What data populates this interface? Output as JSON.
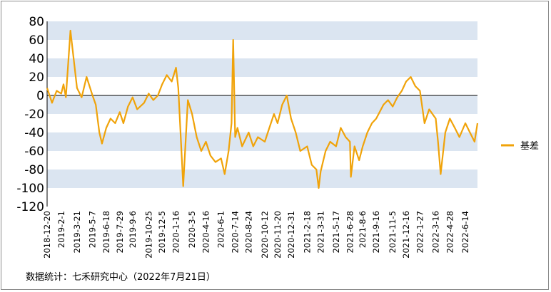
{
  "source_note": "数据统计：七禾研究中心（2022年7月21日）",
  "colors": {
    "line": "#f0a30a",
    "band": "#dbe5f1",
    "zero_line": "#000000"
  },
  "chart_data": {
    "type": "line",
    "title": "",
    "xlabel": "",
    "ylabel": "",
    "ylim": [
      -120,
      80
    ],
    "yticks": [
      80,
      60,
      40,
      20,
      0,
      -20,
      -40,
      -60,
      -80,
      -100,
      -120
    ],
    "x_tick_labels": [
      "2018-12-20",
      "2019-2-1",
      "2019-3-21",
      "2019-5-7",
      "2019-6-18",
      "2019-7-29",
      "2019-9-6",
      "2019-10-25",
      "2019-12-5",
      "2020-1-16",
      "2020-3-5",
      "2020-4-16",
      "2020-6-1",
      "2020-7-14",
      "2020-8-24",
      "2020-10-12",
      "2020-11-20",
      "2020-12-31",
      "2021-2-18",
      "2021-3-31",
      "2021-5-17",
      "2021-6-28",
      "2021-8-6",
      "2021-9-16",
      "2021-11-5",
      "2021-12-16",
      "2022-1-27",
      "2022-3-16",
      "2022-4-28",
      "2022-6-14"
    ],
    "legend_position": "right",
    "grid": "alternating horizontal bands",
    "series": [
      {
        "name": "基差",
        "x": [
          "2018-12-20",
          "2019-1-4",
          "2019-1-18",
          "2019-2-1",
          "2019-2-8",
          "2019-2-15",
          "2019-3-1",
          "2019-3-21",
          "2019-4-4",
          "2019-4-19",
          "2019-5-7",
          "2019-5-17",
          "2019-5-28",
          "2019-6-5",
          "2019-6-18",
          "2019-7-1",
          "2019-7-15",
          "2019-7-29",
          "2019-8-9",
          "2019-8-23",
          "2019-9-6",
          "2019-9-20",
          "2019-10-11",
          "2019-10-25",
          "2019-11-8",
          "2019-11-22",
          "2019-12-5",
          "2019-12-19",
          "2020-1-3",
          "2020-1-16",
          "2020-1-23",
          "2020-2-7",
          "2020-2-21",
          "2020-3-5",
          "2020-3-19",
          "2020-4-2",
          "2020-4-16",
          "2020-4-30",
          "2020-5-15",
          "2020-6-1",
          "2020-6-12",
          "2020-6-24",
          "2020-7-3",
          "2020-7-8",
          "2020-7-14",
          "2020-7-21",
          "2020-8-4",
          "2020-8-24",
          "2020-9-7",
          "2020-9-21",
          "2020-10-12",
          "2020-10-26",
          "2020-11-9",
          "2020-11-20",
          "2020-12-4",
          "2020-12-18",
          "2020-12-31",
          "2021-1-14",
          "2021-1-28",
          "2021-2-18",
          "2021-3-4",
          "2021-3-18",
          "2021-3-25",
          "2021-3-31",
          "2021-4-15",
          "2021-4-29",
          "2021-5-17",
          "2021-5-31",
          "2021-6-15",
          "2021-6-28",
          "2021-7-1",
          "2021-7-12",
          "2021-7-26",
          "2021-8-6",
          "2021-8-20",
          "2021-9-3",
          "2021-9-16",
          "2021-10-8",
          "2021-10-22",
          "2021-11-5",
          "2021-11-19",
          "2021-12-3",
          "2021-12-16",
          "2021-12-30",
          "2022-1-13",
          "2022-1-27",
          "2022-2-10",
          "2022-2-24",
          "2022-3-16",
          "2022-3-23",
          "2022-3-31",
          "2022-4-14",
          "2022-4-28",
          "2022-5-13",
          "2022-5-27",
          "2022-6-14",
          "2022-6-28",
          "2022-7-12",
          "2022-7-21"
        ],
        "values": [
          8,
          -8,
          5,
          2,
          12,
          -2,
          70,
          8,
          -2,
          20,
          0,
          -10,
          -40,
          -52,
          -35,
          -25,
          -30,
          -18,
          -30,
          -12,
          -2,
          -15,
          -8,
          2,
          -5,
          0,
          12,
          22,
          15,
          30,
          8,
          -98,
          -5,
          -20,
          -45,
          -60,
          -50,
          -65,
          -72,
          -68,
          -85,
          -60,
          -30,
          60,
          -45,
          -35,
          -55,
          -40,
          -55,
          -45,
          -50,
          -35,
          -20,
          -30,
          -10,
          0,
          -25,
          -40,
          -60,
          -55,
          -75,
          -80,
          -100,
          -82,
          -60,
          -50,
          -55,
          -35,
          -45,
          -50,
          -88,
          -55,
          -70,
          -55,
          -40,
          -30,
          -25,
          -10,
          -5,
          -12,
          -2,
          5,
          15,
          20,
          10,
          5,
          -30,
          -15,
          -25,
          -50,
          -85,
          -40,
          -25,
          -35,
          -45,
          -30,
          -40,
          -50,
          -30
        ]
      }
    ]
  }
}
